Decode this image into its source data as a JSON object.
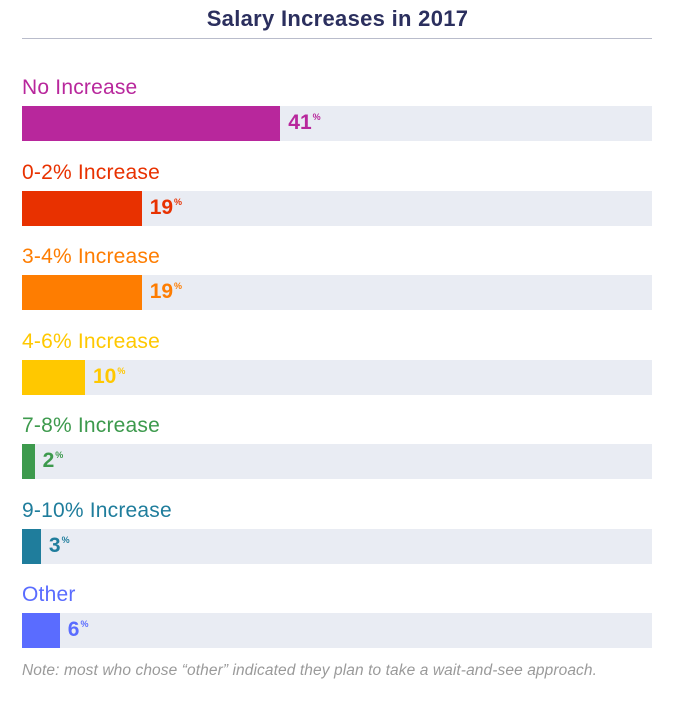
{
  "chart_data": {
    "type": "bar",
    "orientation": "horizontal",
    "title": "Salary Increases in 2017",
    "xlim": [
      0,
      100
    ],
    "value_suffix": "%",
    "categories": [
      "No Increase",
      "0-2% Increase",
      "3-4% Increase",
      "4-6% Increase",
      "7-8% Increase",
      "9-10% Increase",
      "Other"
    ],
    "values": [
      41,
      19,
      19,
      10,
      2,
      3,
      6
    ],
    "colors": [
      "#b8279c",
      "#e83100",
      "#fe7d01",
      "#ffc800",
      "#3d9a4d",
      "#1f7d9c",
      "#5a6cff"
    ],
    "track_color": "#e9ecf3",
    "note": "Note: most who chose “other” indicated they plan to take a wait-and-see approach."
  }
}
